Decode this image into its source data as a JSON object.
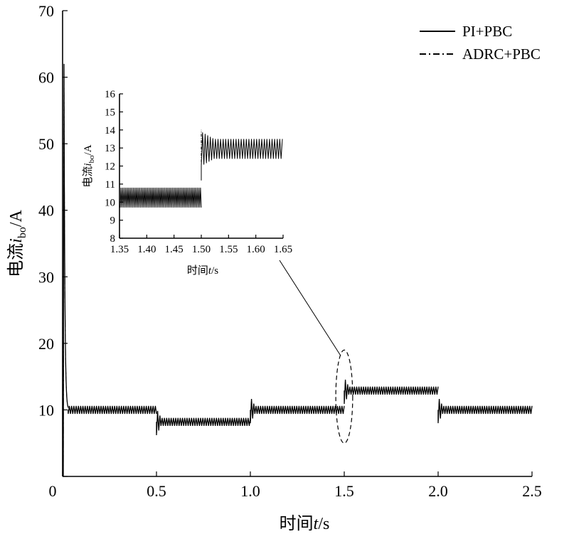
{
  "chart_data": {
    "type": "line",
    "main": {
      "xlabel_prefix": "时间",
      "xlabel_var": "t",
      "xlabel_suffix": "/s",
      "ylabel_prefix": "电流",
      "ylabel_var": "i",
      "ylabel_sub": "bo",
      "ylabel_suffix": "/A",
      "xlim": [
        0,
        2.5
      ],
      "ylim": [
        0,
        70
      ],
      "xticks": [
        0,
        0.5,
        1.0,
        1.5,
        2.0,
        2.5
      ],
      "xtick_labels": [
        "0",
        "0.5",
        "1.0",
        "1.5",
        "2.0",
        "2.5"
      ],
      "yticks": [
        0,
        10,
        20,
        30,
        40,
        50,
        60,
        70
      ],
      "ytick_labels": [
        "",
        "10",
        "20",
        "30",
        "40",
        "50",
        "60",
        "70"
      ],
      "legend_position": "top-right",
      "grid": false
    },
    "series": [
      {
        "name": "PI+PBC",
        "style": "solid",
        "segments": [
          {
            "x0": 0.0,
            "x1": 0.03,
            "mean": 62.0
          },
          {
            "x0": 0.03,
            "x1": 0.5,
            "mean": 10.0,
            "ripple": 0.6
          },
          {
            "x0": 0.5,
            "x1": 1.0,
            "mean": 8.2,
            "ripple": 0.6
          },
          {
            "x0": 1.0,
            "x1": 1.5,
            "mean": 10.0,
            "ripple": 0.6
          },
          {
            "x0": 1.5,
            "x1": 2.0,
            "mean": 12.9,
            "ripple": 0.6
          },
          {
            "x0": 2.0,
            "x1": 2.5,
            "mean": 10.0,
            "ripple": 0.6
          }
        ]
      },
      {
        "name": "ADRC+PBC",
        "style": "dash-dot",
        "segments": [
          {
            "x0": 0.0,
            "x1": 0.03,
            "mean": 62.0
          },
          {
            "x0": 0.03,
            "x1": 0.5,
            "mean": 10.0,
            "ripple": 0.5
          },
          {
            "x0": 0.5,
            "x1": 1.0,
            "mean": 8.2,
            "ripple": 0.5
          },
          {
            "x0": 1.0,
            "x1": 1.5,
            "mean": 10.0,
            "ripple": 0.5
          },
          {
            "x0": 1.5,
            "x1": 2.0,
            "mean": 12.9,
            "ripple": 0.5
          },
          {
            "x0": 2.0,
            "x1": 2.5,
            "mean": 10.0,
            "ripple": 0.5
          }
        ]
      }
    ],
    "inset": {
      "xlabel_prefix": "时间",
      "xlabel_var": "t",
      "xlabel_suffix": "/s",
      "ylabel_prefix": "电流",
      "ylabel_var": "i",
      "ylabel_sub": "bo",
      "ylabel_suffix": "/A",
      "xlim": [
        1.35,
        1.65
      ],
      "ylim": [
        8,
        16
      ],
      "xticks": [
        1.35,
        1.4,
        1.45,
        1.5,
        1.55,
        1.6,
        1.65
      ],
      "xtick_labels": [
        "1.35",
        "1.40",
        "1.45",
        "1.50",
        "1.55",
        "1.60",
        "1.65"
      ],
      "yticks": [
        8,
        9,
        10,
        11,
        12,
        13,
        14,
        15,
        16
      ],
      "ytick_labels": [
        "8",
        "9",
        "10",
        "11",
        "12",
        "13",
        "14",
        "15",
        "16"
      ],
      "before_step": {
        "x0": 1.35,
        "x1": 1.5,
        "low": 9.7,
        "high": 10.8
      },
      "spike": {
        "x": 1.5,
        "peak": 14.0
      },
      "after_step": {
        "x0": 1.5,
        "x1": 1.65,
        "low": 12.4,
        "high": 13.5
      },
      "zoom_region": {
        "x_center": 1.5,
        "y_center": 12.0,
        "x_halfwidth": 0.045,
        "y_halfheight": 7.0
      }
    }
  },
  "colors": {
    "line": "#000000",
    "background": "#ffffff"
  }
}
